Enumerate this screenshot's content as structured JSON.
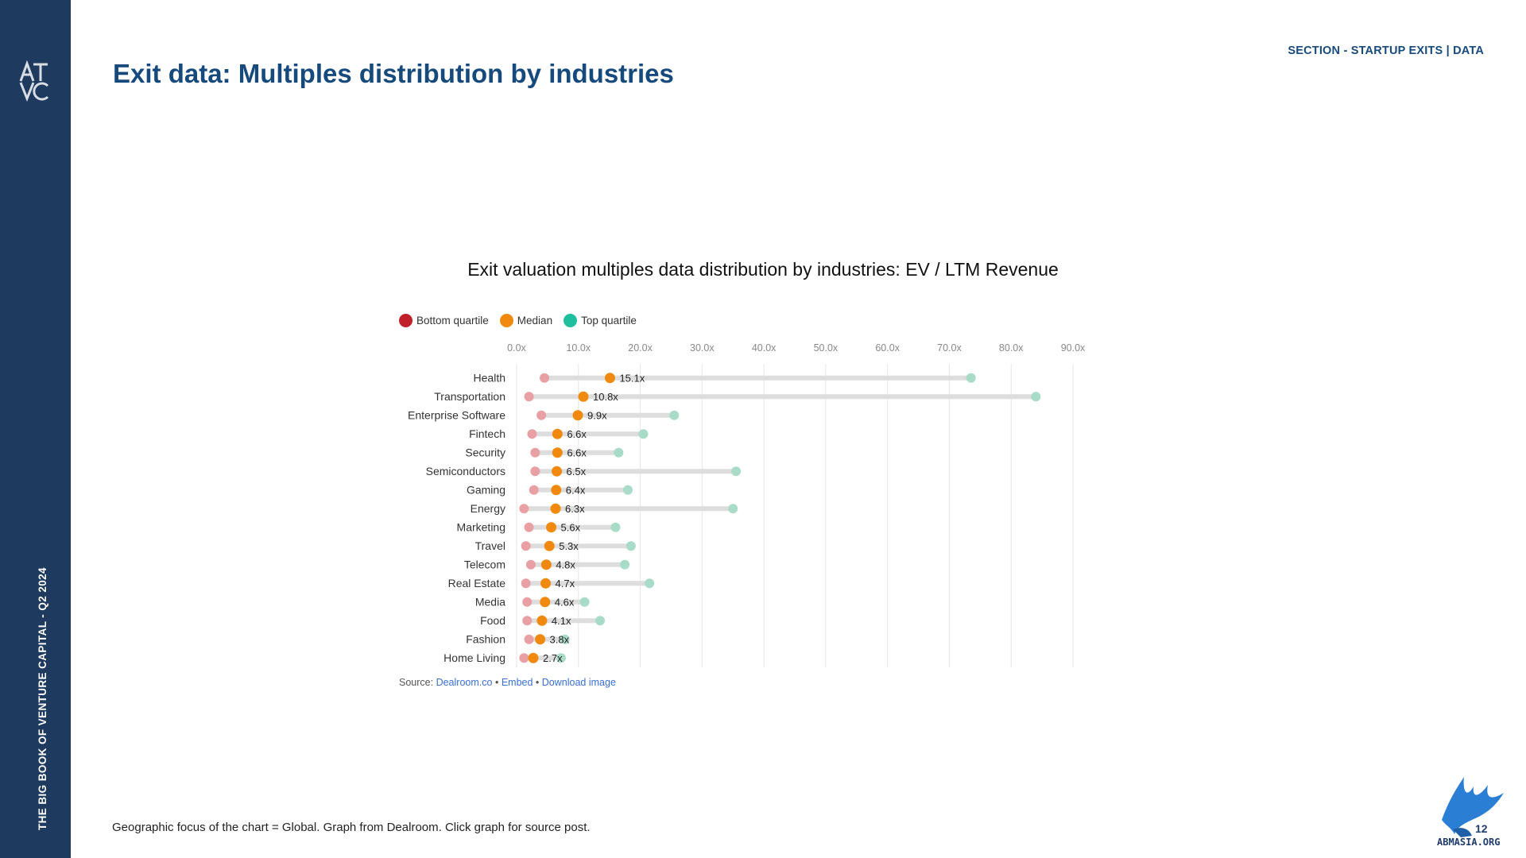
{
  "sidebar": {
    "logo_text": "ATVC",
    "vertical_text": "THE BIG BOOK OF VENTURE CAPITAL - Q2 2024"
  },
  "header": {
    "title": "Exit data: Multiples distribution by industries",
    "section_label": "SECTION - STARTUP EXITS | DATA"
  },
  "chart": {
    "title": "Exit valuation multiples data distribution by industries: EV / LTM Revenue",
    "legend": [
      {
        "label": "Bottom quartile",
        "color": "#c0202a"
      },
      {
        "label": "Median",
        "color": "#f0890e"
      },
      {
        "label": "Top quartile",
        "color": "#1ebe9e"
      }
    ],
    "source": {
      "prefix": "Source:",
      "link1": "Dealroom.co",
      "sep1": "•",
      "link2": "Embed",
      "sep2": "•",
      "link3": "Download image"
    }
  },
  "chart_data": {
    "type": "dot-range",
    "title": "Exit valuation multiples data distribution by industries: EV / LTM Revenue",
    "xlabel": "",
    "ylabel": "",
    "xlim": [
      0,
      90
    ],
    "x_ticks": [
      "0.0x",
      "10.0x",
      "20.0x",
      "30.0x",
      "40.0x",
      "50.0x",
      "60.0x",
      "70.0x",
      "80.0x",
      "90.0x"
    ],
    "categories": [
      "Health",
      "Transportation",
      "Enterprise Software",
      "Fintech",
      "Security",
      "Semiconductors",
      "Gaming",
      "Energy",
      "Marketing",
      "Travel",
      "Telecom",
      "Real Estate",
      "Media",
      "Food",
      "Fashion",
      "Home Living"
    ],
    "series": [
      {
        "name": "Bottom quartile",
        "color": "#e8a0a4",
        "values": [
          4.5,
          2.0,
          4.0,
          2.5,
          3.0,
          3.0,
          2.8,
          1.2,
          2.0,
          1.5,
          2.3,
          1.5,
          1.7,
          1.7,
          2.0,
          1.2
        ]
      },
      {
        "name": "Median",
        "color": "#f0890e",
        "values": [
          15.1,
          10.8,
          9.9,
          6.6,
          6.6,
          6.5,
          6.4,
          6.3,
          5.6,
          5.3,
          4.8,
          4.7,
          4.6,
          4.1,
          3.8,
          2.7
        ]
      },
      {
        "name": "Top quartile",
        "color": "#a8dcc8",
        "values": [
          73.5,
          84.0,
          25.5,
          20.5,
          16.5,
          35.5,
          18.0,
          35.0,
          16.0,
          18.5,
          17.5,
          21.5,
          11.0,
          13.5,
          7.8,
          7.2
        ]
      }
    ],
    "median_labels": [
      "15.1x",
      "10.8x",
      "9.9x",
      "6.6x",
      "6.6x",
      "6.5x",
      "6.4x",
      "6.3x",
      "5.6x",
      "5.3x",
      "4.8x",
      "4.7x",
      "4.6x",
      "4.1x",
      "3.8x",
      "2.7x"
    ],
    "grid": true,
    "legend_position": "top-left"
  },
  "footer": {
    "note": "Geographic focus of the chart = Global. Graph from Dealroom. Click graph for source post.",
    "brand_text": "ABMASIA.ORG",
    "brand_number": "12"
  }
}
